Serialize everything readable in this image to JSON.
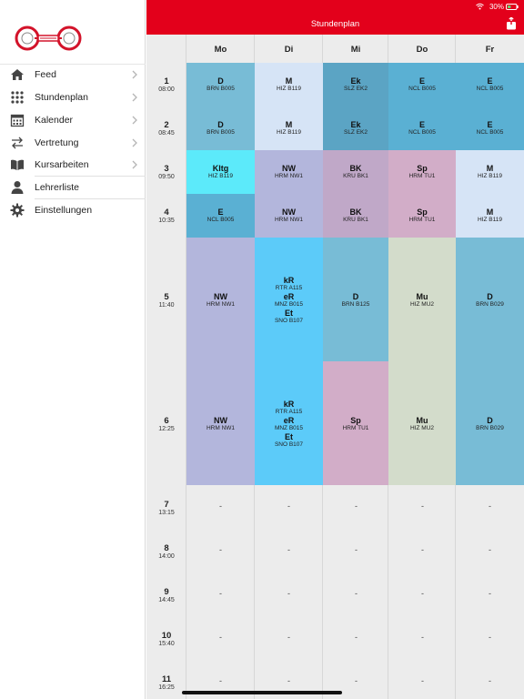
{
  "status": {
    "battery": "30%"
  },
  "header": {
    "title": "Stundenplan"
  },
  "sidebar": {
    "items": [
      {
        "label": "Feed",
        "icon": "home-icon"
      },
      {
        "label": "Stundenplan",
        "icon": "grid-icon"
      },
      {
        "label": "Kalender",
        "icon": "calendar-icon"
      },
      {
        "label": "Vertretung",
        "icon": "swap-icon"
      },
      {
        "label": "Kursarbeiten",
        "icon": "book-icon"
      },
      {
        "label": "Lehrerliste",
        "icon": "person-icon"
      },
      {
        "label": "Einstellungen",
        "icon": "gear-icon"
      }
    ]
  },
  "days": [
    "Mo",
    "Di",
    "Mi",
    "Do",
    "Fr"
  ],
  "periods": [
    {
      "num": "1",
      "time": "08:00"
    },
    {
      "num": "2",
      "time": "08:45"
    },
    {
      "num": "3",
      "time": "09:50"
    },
    {
      "num": "4",
      "time": "10:35"
    },
    {
      "num": "5",
      "time": "11:40"
    },
    {
      "num": "6",
      "time": "12:25"
    },
    {
      "num": "7",
      "time": "13:15"
    },
    {
      "num": "8",
      "time": "14:00"
    },
    {
      "num": "9",
      "time": "14:45"
    },
    {
      "num": "10",
      "time": "15:40"
    },
    {
      "num": "11",
      "time": "16:25"
    }
  ],
  "lessons": {
    "mo": [
      {
        "subject": "D",
        "room": "BRN B005",
        "color": "#78bcd6"
      },
      {
        "subject": "D",
        "room": "BRN B005",
        "color": "#78bcd6"
      },
      {
        "subject": "Kltg",
        "room": "HIZ B119",
        "color": "#5ceafa"
      },
      {
        "subject": "E",
        "room": "NCL B005",
        "color": "#5ab0d3"
      },
      {
        "subject": "NW",
        "room": "HRM NW1",
        "color": "#b3b6dc"
      },
      {
        "subject": "NW",
        "room": "HRM NW1",
        "color": "#b3b6dc"
      }
    ],
    "di": [
      {
        "subject": "M",
        "room": "HIZ B119",
        "color": "#d6e4f6"
      },
      {
        "subject": "M",
        "room": "HIZ B119",
        "color": "#d6e4f6"
      },
      {
        "subject": "NW",
        "room": "HRM NW1",
        "color": "#b3b6dc"
      },
      {
        "subject": "NW",
        "room": "HRM NW1",
        "color": "#b3b6dc"
      },
      {
        "lines": [
          {
            "subject": "kR",
            "room": "RTR A115"
          },
          {
            "subject": "eR",
            "room": "MNZ B015"
          },
          {
            "subject": "Et",
            "room": "SNO B107"
          }
        ],
        "color": "#5ccbf9"
      },
      {
        "lines": [
          {
            "subject": "kR",
            "room": "RTR A115"
          },
          {
            "subject": "eR",
            "room": "MNZ B015"
          },
          {
            "subject": "Et",
            "room": "SNO B107"
          }
        ],
        "color": "#5ccbf9"
      }
    ],
    "mi": [
      {
        "subject": "Ek",
        "room": "SLZ EK2",
        "color": "#5ba4c4"
      },
      {
        "subject": "Ek",
        "room": "SLZ EK2",
        "color": "#5ba4c4"
      },
      {
        "subject": "BK",
        "room": "KRU BK1",
        "color": "#c0a8c8"
      },
      {
        "subject": "BK",
        "room": "KRU BK1",
        "color": "#c0a8c8"
      },
      {
        "subject": "D",
        "room": "BRN B125",
        "color": "#78bcd6"
      },
      {
        "subject": "Sp",
        "room": "HRM TU1",
        "color": "#d2adc8"
      }
    ],
    "do": [
      {
        "subject": "E",
        "room": "NCL B005",
        "color": "#5ab0d3"
      },
      {
        "subject": "E",
        "room": "NCL B005",
        "color": "#5ab0d3"
      },
      {
        "subject": "Sp",
        "room": "HRM TU1",
        "color": "#d2adc8"
      },
      {
        "subject": "Sp",
        "room": "HRM TU1",
        "color": "#d2adc8"
      },
      {
        "subject": "Mu",
        "room": "HIZ MU2",
        "color": "#d3dccb"
      },
      {
        "subject": "Mu",
        "room": "HIZ MU2",
        "color": "#d3dccb"
      }
    ],
    "fr": [
      {
        "subject": "E",
        "room": "NCL B005",
        "color": "#5ab0d3"
      },
      {
        "subject": "E",
        "room": "NCL B005",
        "color": "#5ab0d3"
      },
      {
        "subject": "M",
        "room": "HIZ B119",
        "color": "#d6e4f6"
      },
      {
        "subject": "M",
        "room": "HIZ B119",
        "color": "#d6e4f6"
      },
      {
        "subject": "D",
        "room": "BRN B029",
        "color": "#78bcd6"
      },
      {
        "subject": "D",
        "room": "BRN B029",
        "color": "#78bcd6"
      }
    ]
  },
  "empty_marker": "-",
  "colors": {
    "brand": "#e3001b",
    "grid_background": "#ececec"
  }
}
